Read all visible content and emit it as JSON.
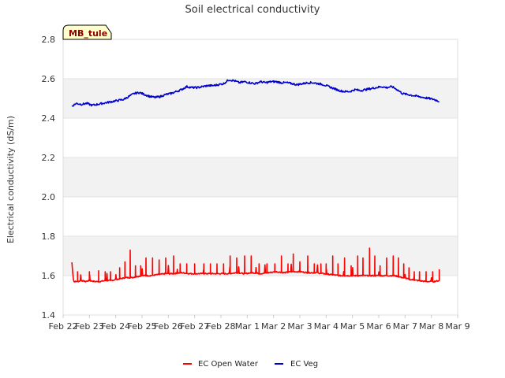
{
  "chart_data": {
    "type": "line",
    "title": "Soil electrical conductivity",
    "xlabel": "",
    "ylabel": "Electrical conductivity (dS/m)",
    "ylim": [
      1.4,
      2.8
    ],
    "xlim": [
      0,
      15
    ],
    "grid": "horizontal alternating bands",
    "legend_position": "bottom-center",
    "station_badge": "MB_tule",
    "y_ticks": [
      "1.4",
      "1.6",
      "1.8",
      "2.0",
      "2.2",
      "2.4",
      "2.6",
      "2.8"
    ],
    "x_ticks": [
      {
        "label": "Feb 22",
        "x": 0
      },
      {
        "label": "Feb 23",
        "x": 1
      },
      {
        "label": "Feb 24",
        "x": 2
      },
      {
        "label": "Feb 25",
        "x": 3
      },
      {
        "label": "Feb 26",
        "x": 4
      },
      {
        "label": "Feb 27",
        "x": 5
      },
      {
        "label": "Feb 28",
        "x": 6
      },
      {
        "label": "Mar 1",
        "x": 7
      },
      {
        "label": "Mar 2",
        "x": 8
      },
      {
        "label": "Mar 3",
        "x": 9
      },
      {
        "label": "Mar 4",
        "x": 10
      },
      {
        "label": "Mar 5",
        "x": 11
      },
      {
        "label": "Mar 6",
        "x": 12
      },
      {
        "label": "Mar 7",
        "x": 13
      },
      {
        "label": "Mar 8",
        "x": 14
      },
      {
        "label": "Mar 9",
        "x": 15
      }
    ],
    "series": [
      {
        "name": "EC Open Water",
        "color": "#ff0000",
        "x": [
          0.33,
          0.4,
          0.55,
          0.7,
          0.85,
          1.0,
          1.2,
          1.4,
          1.6,
          1.8,
          2.0,
          2.2,
          2.4,
          2.6,
          2.8,
          3.0,
          3.3,
          3.6,
          3.9,
          4.2,
          4.5,
          4.8,
          5.1,
          5.4,
          5.7,
          6.0,
          6.3,
          6.6,
          6.9,
          7.2,
          7.5,
          7.8,
          8.1,
          8.4,
          8.7,
          9.0,
          9.3,
          9.6,
          9.9,
          10.2,
          10.5,
          10.8,
          11.1,
          11.4,
          11.7,
          12.0,
          12.3,
          12.6,
          12.9,
          13.2,
          13.5,
          13.8,
          14.1,
          14.3
        ],
        "y": [
          1.665,
          1.57,
          1.57,
          1.575,
          1.57,
          1.575,
          1.57,
          1.57,
          1.575,
          1.575,
          1.58,
          1.585,
          1.59,
          1.59,
          1.595,
          1.6,
          1.6,
          1.605,
          1.61,
          1.61,
          1.615,
          1.61,
          1.61,
          1.61,
          1.61,
          1.61,
          1.61,
          1.615,
          1.61,
          1.615,
          1.61,
          1.615,
          1.62,
          1.615,
          1.62,
          1.62,
          1.615,
          1.615,
          1.61,
          1.605,
          1.6,
          1.6,
          1.6,
          1.6,
          1.6,
          1.6,
          1.6,
          1.6,
          1.59,
          1.58,
          1.575,
          1.57,
          1.57,
          1.575
        ],
        "peaks": [
          {
            "x": 0.33,
            "y": 1.665
          },
          {
            "x": 0.55,
            "y": 1.62
          },
          {
            "x": 1.0,
            "y": 1.62
          },
          {
            "x": 1.35,
            "y": 1.625
          },
          {
            "x": 1.6,
            "y": 1.62
          },
          {
            "x": 1.8,
            "y": 1.62
          },
          {
            "x": 2.15,
            "y": 1.64
          },
          {
            "x": 2.35,
            "y": 1.67
          },
          {
            "x": 2.55,
            "y": 1.73
          },
          {
            "x": 2.75,
            "y": 1.65
          },
          {
            "x": 2.95,
            "y": 1.65
          },
          {
            "x": 3.15,
            "y": 1.69
          },
          {
            "x": 3.4,
            "y": 1.69
          },
          {
            "x": 3.65,
            "y": 1.68
          },
          {
            "x": 3.9,
            "y": 1.69
          },
          {
            "x": 4.2,
            "y": 1.7
          },
          {
            "x": 4.45,
            "y": 1.66
          },
          {
            "x": 4.7,
            "y": 1.66
          },
          {
            "x": 5.0,
            "y": 1.66
          },
          {
            "x": 5.35,
            "y": 1.66
          },
          {
            "x": 5.6,
            "y": 1.66
          },
          {
            "x": 5.85,
            "y": 1.66
          },
          {
            "x": 6.1,
            "y": 1.66
          },
          {
            "x": 6.35,
            "y": 1.7
          },
          {
            "x": 6.6,
            "y": 1.69
          },
          {
            "x": 6.9,
            "y": 1.7
          },
          {
            "x": 7.15,
            "y": 1.7
          },
          {
            "x": 7.45,
            "y": 1.66
          },
          {
            "x": 7.75,
            "y": 1.66
          },
          {
            "x": 8.05,
            "y": 1.66
          },
          {
            "x": 8.3,
            "y": 1.7
          },
          {
            "x": 8.55,
            "y": 1.66
          },
          {
            "x": 8.75,
            "y": 1.71
          },
          {
            "x": 9.0,
            "y": 1.67
          },
          {
            "x": 9.3,
            "y": 1.7
          },
          {
            "x": 9.55,
            "y": 1.66
          },
          {
            "x": 9.8,
            "y": 1.66
          },
          {
            "x": 10.0,
            "y": 1.66
          },
          {
            "x": 10.25,
            "y": 1.7
          },
          {
            "x": 10.45,
            "y": 1.66
          },
          {
            "x": 10.7,
            "y": 1.69
          },
          {
            "x": 10.95,
            "y": 1.65
          },
          {
            "x": 11.2,
            "y": 1.7
          },
          {
            "x": 11.4,
            "y": 1.69
          },
          {
            "x": 11.65,
            "y": 1.74
          },
          {
            "x": 11.85,
            "y": 1.7
          },
          {
            "x": 12.05,
            "y": 1.65
          },
          {
            "x": 12.3,
            "y": 1.69
          },
          {
            "x": 12.55,
            "y": 1.7
          },
          {
            "x": 12.75,
            "y": 1.69
          },
          {
            "x": 12.95,
            "y": 1.66
          },
          {
            "x": 13.15,
            "y": 1.64
          },
          {
            "x": 13.35,
            "y": 1.62
          },
          {
            "x": 13.55,
            "y": 1.62
          },
          {
            "x": 13.8,
            "y": 1.62
          },
          {
            "x": 14.05,
            "y": 1.62
          },
          {
            "x": 14.3,
            "y": 1.63
          }
        ]
      },
      {
        "name": "EC Veg",
        "color": "#0000cc",
        "x": [
          0.33,
          0.5,
          0.7,
          0.9,
          1.1,
          1.3,
          1.5,
          1.7,
          1.9,
          2.1,
          2.3,
          2.5,
          2.7,
          2.9,
          3.1,
          3.3,
          3.5,
          3.7,
          3.9,
          4.1,
          4.3,
          4.5,
          4.7,
          4.9,
          5.1,
          5.3,
          5.5,
          5.7,
          5.9,
          6.1,
          6.3,
          6.5,
          6.7,
          6.9,
          7.1,
          7.3,
          7.5,
          7.7,
          7.9,
          8.1,
          8.3,
          8.5,
          8.7,
          8.9,
          9.1,
          9.3,
          9.5,
          9.7,
          9.9,
          10.1,
          10.3,
          10.5,
          10.7,
          10.9,
          11.1,
          11.3,
          11.5,
          11.7,
          11.9,
          12.1,
          12.3,
          12.5,
          12.7,
          12.9,
          13.1,
          13.3,
          13.5,
          13.7,
          13.9,
          14.1,
          14.3
        ],
        "y": [
          2.46,
          2.475,
          2.47,
          2.475,
          2.465,
          2.47,
          2.475,
          2.48,
          2.485,
          2.49,
          2.495,
          2.51,
          2.525,
          2.53,
          2.52,
          2.51,
          2.505,
          2.51,
          2.52,
          2.525,
          2.535,
          2.545,
          2.56,
          2.555,
          2.555,
          2.56,
          2.565,
          2.565,
          2.57,
          2.575,
          2.595,
          2.59,
          2.58,
          2.585,
          2.58,
          2.575,
          2.585,
          2.58,
          2.585,
          2.585,
          2.58,
          2.58,
          2.575,
          2.57,
          2.575,
          2.58,
          2.58,
          2.575,
          2.57,
          2.56,
          2.55,
          2.54,
          2.535,
          2.535,
          2.545,
          2.54,
          2.545,
          2.55,
          2.555,
          2.56,
          2.555,
          2.56,
          2.545,
          2.525,
          2.52,
          2.515,
          2.51,
          2.505,
          2.5,
          2.495,
          2.485
        ]
      }
    ]
  }
}
